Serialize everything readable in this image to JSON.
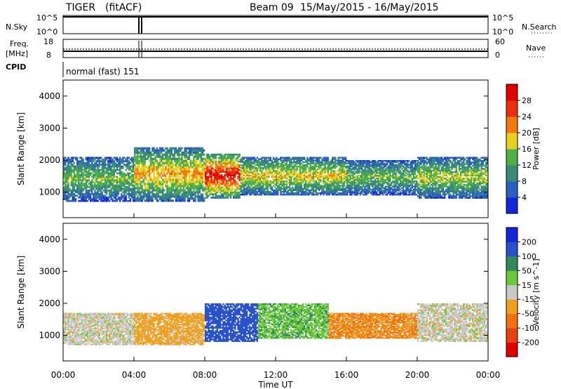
{
  "header": {
    "radar": "TIGER",
    "mode": "(fitACF)",
    "beam": "Beam 09",
    "date_range": "15/May/2015 - 16/May/2015"
  },
  "aux_panels": {
    "nsky_label": "N.Sky",
    "nsky_ticks": [
      "10^5",
      "10^0"
    ],
    "nsearch_label": "N.Search",
    "nsearch_ticks": [
      "10^5",
      "10^0"
    ],
    "freq_label_1": "Freq.",
    "freq_label_2": "[MHz]",
    "freq_ticks": [
      "18",
      "8"
    ],
    "nave_label": "Nave",
    "nave_ticks": [
      "60",
      "0"
    ],
    "cpid_label": "CPID",
    "cpid_text": "normal (fast) 151"
  },
  "axes": {
    "x_ticks": [
      "00:00",
      "04:00",
      "08:00",
      "12:00",
      "16:00",
      "20:00",
      "00:00"
    ],
    "x_label": "Time UT",
    "y_ticks": [
      "1000",
      "2000",
      "3000",
      "4000"
    ],
    "y_label": "Slant Range [km]"
  },
  "colorbars": {
    "power_label": "Power [dB]",
    "power_ticks": [
      "4",
      "8",
      "12",
      "16",
      "20",
      "24",
      "28"
    ],
    "power_colors": [
      "#1426d8",
      "#2a5fc0",
      "#3a8a78",
      "#4fb04a",
      "#e8d020",
      "#f07a10",
      "#e83010",
      "#e00000"
    ],
    "velocity_label": "Velocity [m s^-1]",
    "velocity_ticks": [
      "200",
      "100",
      "50",
      "15",
      "-15",
      "-50",
      "-100",
      "-200"
    ],
    "velocity_colors": [
      "#1426d8",
      "#2a52c8",
      "#2e8a5a",
      "#6ac83a",
      "#c8c8c8",
      "#f0a020",
      "#f07010",
      "#e84010",
      "#e00000"
    ]
  },
  "chart_data": [
    {
      "type": "heatmap",
      "title": "Power [dB]",
      "xlabel": "Time UT",
      "ylabel": "Slant Range [km]",
      "xlim": [
        "00:00",
        "24:00"
      ],
      "ylim": [
        200,
        4500
      ],
      "color_range": [
        0,
        30
      ],
      "bands": [
        {
          "t": [
            0,
            4
          ],
          "r_lo": 700,
          "r_hi": 2100,
          "power": 14
        },
        {
          "t": [
            4,
            8
          ],
          "r_lo": 700,
          "r_hi": 2400,
          "power": 20
        },
        {
          "t": [
            8,
            10
          ],
          "r_lo": 800,
          "r_hi": 2200,
          "power": 28
        },
        {
          "t": [
            10,
            16
          ],
          "r_lo": 900,
          "r_hi": 2100,
          "power": 18
        },
        {
          "t": [
            16,
            20
          ],
          "r_lo": 900,
          "r_hi": 2000,
          "power": 14
        },
        {
          "t": [
            20,
            24
          ],
          "r_lo": 800,
          "r_hi": 2100,
          "power": 16
        }
      ]
    },
    {
      "type": "heatmap",
      "title": "Velocity [m s^-1]",
      "xlabel": "Time UT",
      "ylabel": "Slant Range [km]",
      "xlim": [
        "00:00",
        "24:00"
      ],
      "ylim": [
        200,
        4500
      ],
      "color_range": [
        -200,
        200
      ],
      "bands": [
        {
          "t": [
            0,
            4
          ],
          "r_lo": 700,
          "r_hi": 1700,
          "velocity": 0
        },
        {
          "t": [
            4,
            8
          ],
          "r_lo": 700,
          "r_hi": 1700,
          "velocity": -30
        },
        {
          "t": [
            8,
            11
          ],
          "r_lo": 800,
          "r_hi": 2000,
          "velocity": 150
        },
        {
          "t": [
            11,
            15
          ],
          "r_lo": 900,
          "r_hi": 2000,
          "velocity": 40
        },
        {
          "t": [
            15,
            20
          ],
          "r_lo": 900,
          "r_hi": 1700,
          "velocity": -50
        },
        {
          "t": [
            20,
            24
          ],
          "r_lo": 800,
          "r_hi": 2000,
          "velocity": 0
        }
      ]
    }
  ]
}
